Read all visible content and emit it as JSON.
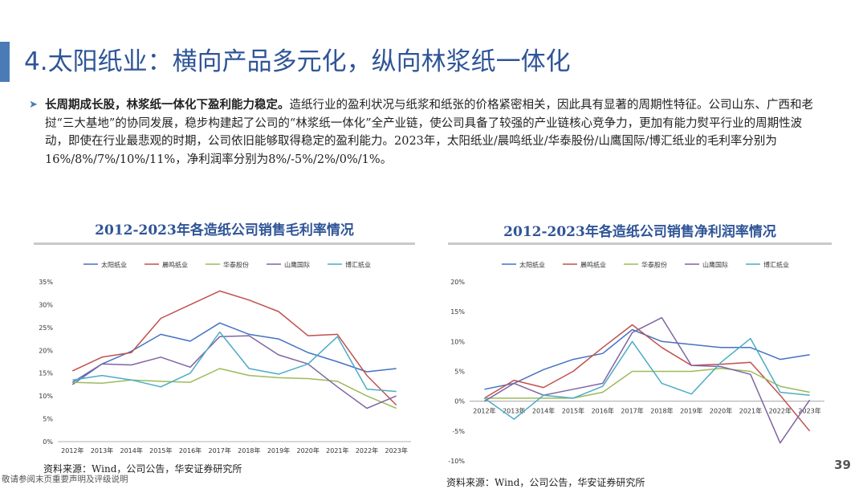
{
  "page": {
    "title": "4.太阳纸业：横向产品多元化，纵向林浆纸一体化",
    "bullet_bold": "长周期成长股，林浆纸一体化下盈利能力稳定。",
    "bullet_text": "造纸行业的盈利状况与纸浆和纸张的价格紧密相关，因此具有显著的周期性特征。公司山东、广西和老挝“三大基地”的协同发展，稳步构建起了公司的“林浆纸一体化”全产业链，使公司具备了较强的产业链核心竞争力，更加有能力熨平行业的周期性波动，即使在行业最悲观的时期，公司依旧能够取得稳定的盈利能力。2023年，太阳纸业/晨鸣纸业/华泰股份/山鹰国际/博汇纸业的毛利率分别为16%/8%/7%/10%/11%，净利润率分别为8%/-5%/2%/0%/1%。",
    "page_number": "39",
    "disclaimer": "敬请参阅末页重要声明及评级说明"
  },
  "colors": {
    "title": "#2f5597",
    "series": [
      "#4472c4",
      "#c0504d",
      "#9bbb59",
      "#8064a2",
      "#4bacc6"
    ]
  },
  "chart_data": [
    {
      "type": "line",
      "title": "2012-2023年各造纸公司销售毛利率情况",
      "source": "资料来源：Wind，公司公告，华安证券研究所",
      "categories": [
        "2012年",
        "2013年",
        "2014年",
        "2015年",
        "2016年",
        "2017年",
        "2018年",
        "2019年",
        "2020年",
        "2021年",
        "2022年",
        "2023年"
      ],
      "ylim": [
        0,
        35
      ],
      "yticks": [
        0,
        5,
        10,
        15,
        20,
        25,
        30,
        35
      ],
      "ytick_labels": [
        "0%",
        "5%",
        "10%",
        "15%",
        "20%",
        "25%",
        "30%",
        "35%"
      ],
      "series": [
        {
          "name": "太阳纸业",
          "values": [
            12.5,
            17.0,
            19.8,
            23.5,
            22.0,
            26.0,
            23.5,
            22.5,
            19.5,
            17.5,
            15.3,
            16.0
          ]
        },
        {
          "name": "晨鸣纸业",
          "values": [
            15.5,
            18.5,
            19.5,
            27.0,
            30.0,
            33.0,
            31.0,
            28.5,
            23.2,
            23.5,
            14.5,
            8.0
          ]
        },
        {
          "name": "华泰股份",
          "values": [
            13.0,
            12.8,
            13.5,
            13.2,
            13.0,
            16.0,
            14.5,
            14.0,
            13.8,
            13.2,
            10.0,
            7.3
          ]
        },
        {
          "name": "山鹰国际",
          "values": [
            13.0,
            17.0,
            16.8,
            18.5,
            16.3,
            23.0,
            23.2,
            19.0,
            17.0,
            12.0,
            7.3,
            10.0
          ]
        },
        {
          "name": "博汇纸业",
          "values": [
            13.5,
            14.5,
            13.5,
            12.0,
            15.0,
            24.0,
            16.0,
            14.8,
            17.0,
            23.0,
            11.5,
            11.0
          ]
        }
      ]
    },
    {
      "type": "line",
      "title": "2012-2023年各造纸公司销售净利润率情况",
      "source": "资料来源：Wind，公司公告，华安证券研究所",
      "categories": [
        "2012年",
        "2013年",
        "2014年",
        "2015年",
        "2016年",
        "2017年",
        "2018年",
        "2019年",
        "2020年",
        "2021年",
        "2022年",
        "2023年"
      ],
      "ylim": [
        -10,
        20
      ],
      "yticks": [
        -10,
        -5,
        0,
        5,
        10,
        15,
        20
      ],
      "ytick_labels": [
        "-10%",
        "-5%",
        "0%",
        "5%",
        "10%",
        "15%",
        "20%"
      ],
      "series": [
        {
          "name": "太阳纸业",
          "values": [
            2.0,
            3.0,
            5.3,
            7.0,
            8.0,
            12.0,
            10.0,
            9.5,
            9.0,
            9.0,
            7.0,
            7.8
          ]
        },
        {
          "name": "晨鸣纸业",
          "values": [
            0.5,
            3.5,
            2.3,
            5.0,
            9.0,
            12.8,
            9.0,
            6.0,
            6.2,
            6.5,
            1.0,
            -5.0
          ]
        },
        {
          "name": "华泰股份",
          "values": [
            0.5,
            0.5,
            0.5,
            0.5,
            1.5,
            5.0,
            5.0,
            5.0,
            5.5,
            5.0,
            2.5,
            1.5
          ]
        },
        {
          "name": "山鹰国际",
          "values": [
            0.0,
            3.0,
            1.0,
            2.0,
            3.0,
            11.5,
            14.0,
            6.0,
            5.8,
            4.5,
            -7.0,
            0.2
          ]
        },
        {
          "name": "博汇纸业",
          "values": [
            0.5,
            -3.0,
            1.0,
            0.5,
            2.5,
            10.0,
            3.0,
            1.2,
            6.5,
            10.5,
            1.5,
            1.0
          ]
        }
      ]
    }
  ]
}
